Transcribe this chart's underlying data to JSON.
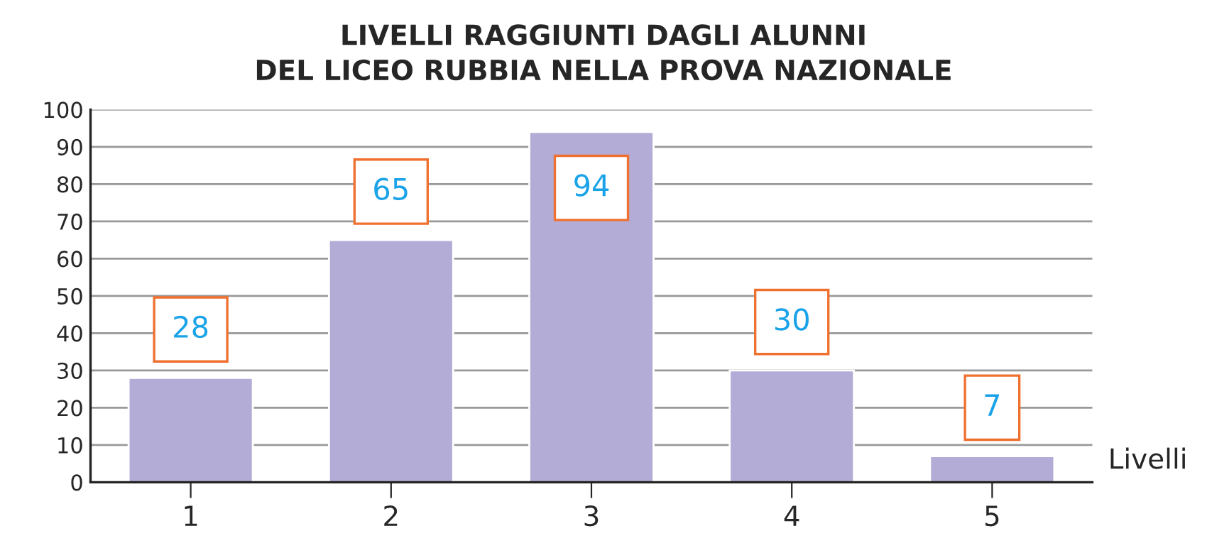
{
  "chart_data": {
    "type": "bar",
    "title": "LIVELLI RAGGIUNTI DAGLI ALUNNI\nDEL LICEO RUBBIA NELLA PROVA NAZIONALE",
    "xlabel": "Livelli",
    "categories": [
      "1",
      "2",
      "3",
      "4",
      "5"
    ],
    "values": [
      28,
      65,
      94,
      30,
      7
    ],
    "color": "#b3acd6",
    "ylim": [
      0,
      100
    ],
    "yticks": [
      0,
      10,
      20,
      30,
      40,
      50,
      60,
      70,
      80,
      90,
      100
    ],
    "grid": "y",
    "data_labels": true
  }
}
